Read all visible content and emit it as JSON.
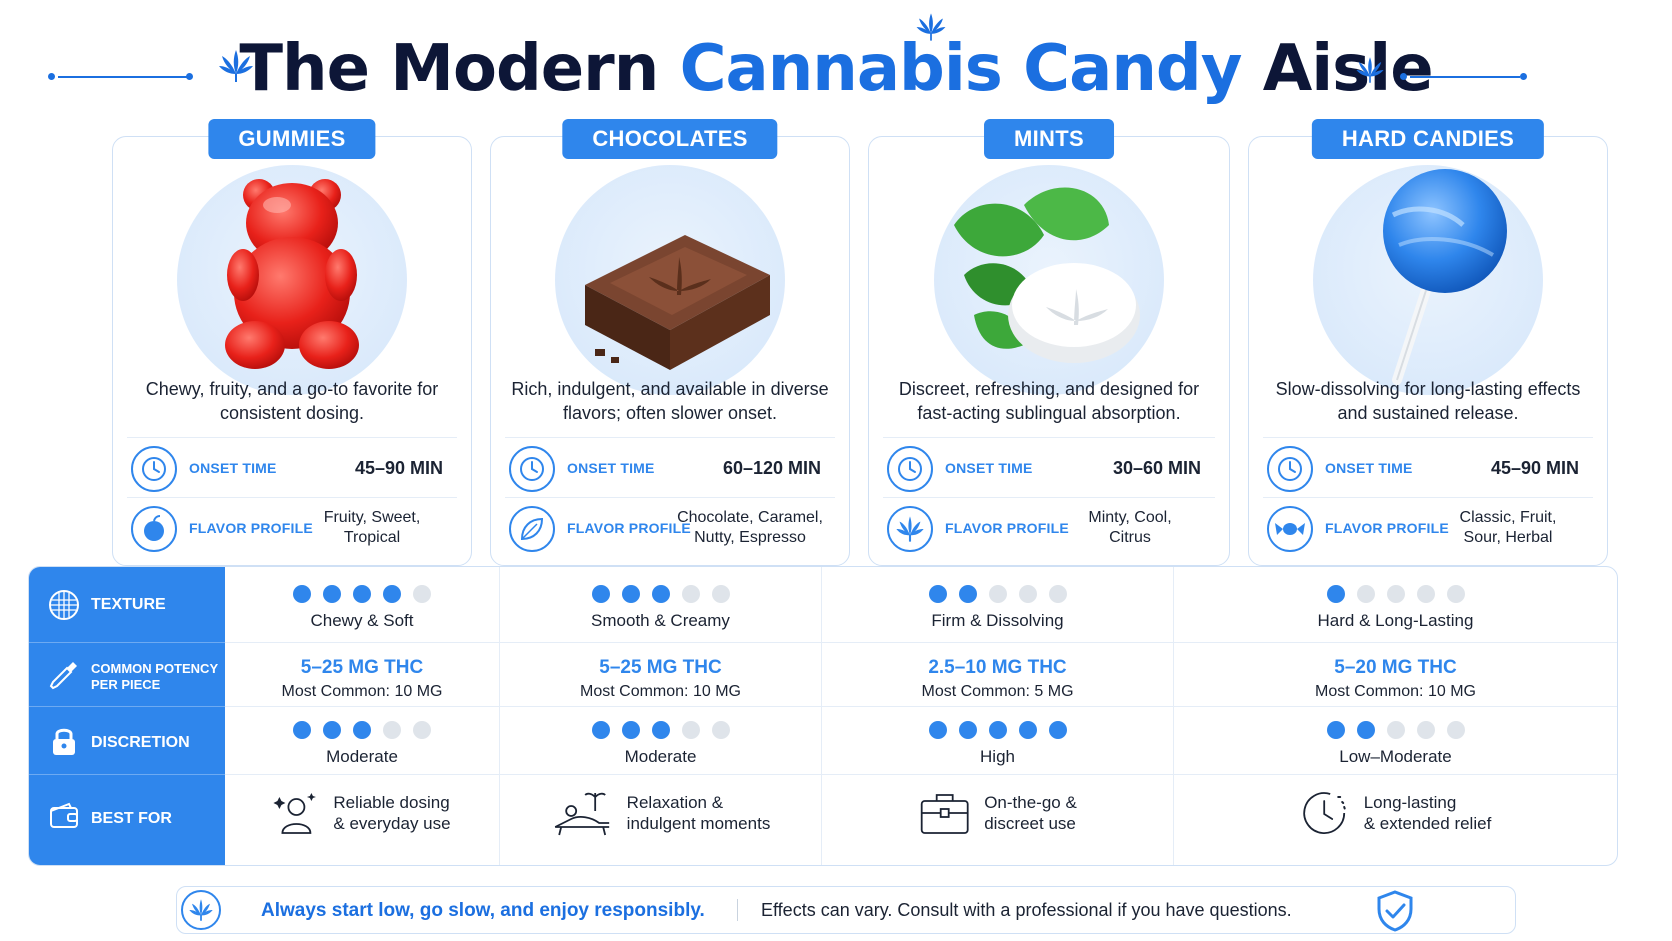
{
  "header": {
    "title_part1": "The Modern ",
    "title_accent": "Cannabis Candy",
    "title_part2": " Aisle"
  },
  "stat_labels": {
    "onset": "ONSET TIME",
    "flavor": "FLAVOR PROFILE"
  },
  "cards": [
    {
      "tag": "GUMMIES",
      "desc": "Chewy, fruity, and a go-to favorite for consistent dosing.",
      "onset": "45–90 MIN",
      "flavor_l1": "Fruity, Sweet,",
      "flavor_l2": "Tropical",
      "hero_icon": "gummy-bear-icon",
      "flavor_icon": "fruit-icon"
    },
    {
      "tag": "CHOCOLATES",
      "desc": "Rich, indulgent, and available in diverse flavors; often slower onset.",
      "onset": "60–120 MIN",
      "flavor_l1": "Chocolate, Caramel,",
      "flavor_l2": "Nutty, Espresso",
      "hero_icon": "chocolate-square-icon",
      "flavor_icon": "leaf-icon"
    },
    {
      "tag": "MINTS",
      "desc": "Discreet, refreshing, and designed for fast-acting sublingual absorption.",
      "onset": "30–60 MIN",
      "flavor_l1": "Minty, Cool,",
      "flavor_l2": "Citrus",
      "hero_icon": "mint-tablet-icon",
      "flavor_icon": "cannabis-leaf-icon"
    },
    {
      "tag": "HARD CANDIES",
      "desc": "Slow-dissolving for long-lasting effects and sustained release.",
      "onset": "45–90 MIN",
      "flavor_l1": "Classic, Fruit,",
      "flavor_l2": "Sour, Herbal",
      "hero_icon": "lollipop-icon",
      "flavor_icon": "wrapped-candy-icon"
    }
  ],
  "table": {
    "row_labels": {
      "texture": "TEXTURE",
      "potency_l1": "COMMON POTENCY",
      "potency_l2": "PER PIECE",
      "discretion": "DISCRETION",
      "best_for": "BEST FOR"
    },
    "dot_max": 5,
    "texture": [
      {
        "level": 4,
        "text": "Chewy & Soft"
      },
      {
        "level": 3,
        "text": "Smooth & Creamy"
      },
      {
        "level": 2,
        "text": "Firm & Dissolving"
      },
      {
        "level": 1,
        "text": "Hard & Long-Lasting"
      }
    ],
    "potency": [
      {
        "main": "5–25 MG THC",
        "sub": "Most Common: 10 MG"
      },
      {
        "main": "5–25 MG THC",
        "sub": "Most Common: 10 MG"
      },
      {
        "main": "2.5–10 MG THC",
        "sub": "Most Common: 5 MG"
      },
      {
        "main": "5–20 MG THC",
        "sub": "Most Common: 10 MG"
      }
    ],
    "discretion": [
      {
        "level": 3,
        "text": "Moderate"
      },
      {
        "level": 3,
        "text": "Moderate"
      },
      {
        "level": 5,
        "text": "High"
      },
      {
        "level": 2,
        "text": "Low–Moderate"
      }
    ],
    "best_for": [
      {
        "l1": "Reliable dosing",
        "l2": "& everyday use",
        "icon": "person-sparkle-icon"
      },
      {
        "l1": "Relaxation &",
        "l2": "indulgent moments",
        "icon": "lounge-chair-icon"
      },
      {
        "l1": "On-the-go &",
        "l2": "discreet use",
        "icon": "briefcase-icon"
      },
      {
        "l1": "Long-lasting",
        "l2": "& extended relief",
        "icon": "clock-icon"
      }
    ]
  },
  "footer": {
    "strong": "Always start low, go slow, and enjoy responsibly.",
    "note": "Effects can vary. Consult with a professional if you have questions."
  },
  "colors": {
    "accent": "#2f86ec",
    "title_dark": "#0d1637",
    "title_blue": "#1b6fe0",
    "dot_off": "#dfe4ea"
  }
}
